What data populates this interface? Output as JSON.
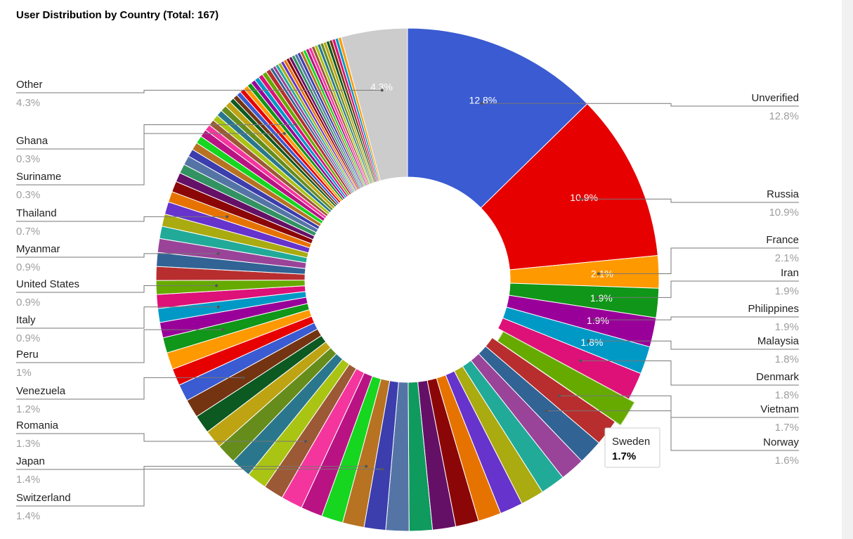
{
  "chart_data": {
    "type": "pie",
    "title": "User Distribution by Country (Total: 167)",
    "hole": true,
    "series": [
      {
        "name": "Unverified",
        "value": 12.8,
        "color": "#3a5bd1",
        "slice_label": "12.8%",
        "legend_label": "12.8%"
      },
      {
        "name": "Russia",
        "value": 10.9,
        "color": "#e60000",
        "slice_label": "10.9%",
        "legend_label": "10.9%"
      },
      {
        "name": "France",
        "value": 2.1,
        "color": "#ff9900",
        "slice_label": "2.1%",
        "legend_label": "2.1%"
      },
      {
        "name": "Iran",
        "value": 1.9,
        "color": "#109618",
        "slice_label": "1.9%",
        "legend_label": "1.9%"
      },
      {
        "name": "Philippines",
        "value": 1.9,
        "color": "#990099",
        "slice_label": "1.9%",
        "legend_label": "1.9%"
      },
      {
        "name": "Malaysia",
        "value": 1.8,
        "color": "#0099c6",
        "slice_label": "1.8%",
        "legend_label": "1.8%"
      },
      {
        "name": "Denmark",
        "value": 1.8,
        "color": "#dd1177",
        "slice_label": "",
        "legend_label": "1.8%"
      },
      {
        "name": "Sweden",
        "value": 1.7,
        "color": "#66aa00",
        "slice_label": "",
        "legend_label": "",
        "exploded": true
      },
      {
        "name": "Vietnam",
        "value": 1.7,
        "color": "#b82e2e",
        "slice_label": "",
        "legend_label": "1.7%"
      },
      {
        "name": "Norway",
        "value": 1.6,
        "color": "#316395",
        "slice_label": "",
        "legend_label": "1.6%"
      },
      {
        "name": "",
        "value": 1.6,
        "color": "#994499",
        "slice_label": "",
        "legend_label": ""
      },
      {
        "name": "",
        "value": 1.6,
        "color": "#22aa99",
        "slice_label": "",
        "legend_label": ""
      },
      {
        "name": "",
        "value": 1.5,
        "color": "#aaaa11",
        "slice_label": "",
        "legend_label": ""
      },
      {
        "name": "",
        "value": 1.5,
        "color": "#6633cc",
        "slice_label": "",
        "legend_label": ""
      },
      {
        "name": "",
        "value": 1.5,
        "color": "#e67300",
        "slice_label": "",
        "legend_label": ""
      },
      {
        "name": "",
        "value": 1.5,
        "color": "#8b0707",
        "slice_label": "",
        "legend_label": ""
      },
      {
        "name": "",
        "value": 1.5,
        "color": "#651067",
        "slice_label": "",
        "legend_label": ""
      },
      {
        "name": "",
        "value": 1.5,
        "color": "#0f9a5e",
        "slice_label": "",
        "legend_label": ""
      },
      {
        "name": "",
        "value": 1.5,
        "color": "#5574a6",
        "slice_label": "",
        "legend_label": ""
      },
      {
        "name": "Switzerland",
        "value": 1.4,
        "color": "#3b3eac",
        "slice_label": "",
        "legend_label": "1.4%"
      },
      {
        "name": "Japan",
        "value": 1.4,
        "color": "#b77322",
        "slice_label": "",
        "legend_label": "1.4%"
      },
      {
        "name": "",
        "value": 1.4,
        "color": "#16d620",
        "slice_label": "",
        "legend_label": ""
      },
      {
        "name": "",
        "value": 1.4,
        "color": "#b91383",
        "slice_label": "",
        "legend_label": ""
      },
      {
        "name": "",
        "value": 1.4,
        "color": "#f4359e",
        "slice_label": "",
        "legend_label": ""
      },
      {
        "name": "Romania",
        "value": 1.3,
        "color": "#9c5935",
        "slice_label": "",
        "legend_label": "1.3%"
      },
      {
        "name": "",
        "value": 1.3,
        "color": "#a9c413",
        "slice_label": "",
        "legend_label": ""
      },
      {
        "name": "",
        "value": 1.3,
        "color": "#2a778d",
        "slice_label": "",
        "legend_label": ""
      },
      {
        "name": "",
        "value": 1.3,
        "color": "#668d1c",
        "slice_label": "",
        "legend_label": ""
      },
      {
        "name": "",
        "value": 1.2,
        "color": "#bea413",
        "slice_label": "",
        "legend_label": ""
      },
      {
        "name": "",
        "value": 1.2,
        "color": "#0c5922",
        "slice_label": "",
        "legend_label": ""
      },
      {
        "name": "Venezuela",
        "value": 1.2,
        "color": "#743411",
        "slice_label": "",
        "legend_label": "1.2%"
      },
      {
        "name": "",
        "value": 1.1,
        "color": "#3a5bd1",
        "slice_label": "",
        "legend_label": ""
      },
      {
        "name": "",
        "value": 1.1,
        "color": "#e60000",
        "slice_label": "",
        "legend_label": ""
      },
      {
        "name": "",
        "value": 1.1,
        "color": "#ff9900",
        "slice_label": "",
        "legend_label": ""
      },
      {
        "name": "Peru",
        "value": 1.0,
        "color": "#109618",
        "slice_label": "",
        "legend_label": "1%"
      },
      {
        "name": "",
        "value": 1.0,
        "color": "#990099",
        "slice_label": "",
        "legend_label": ""
      },
      {
        "name": "Italy",
        "value": 0.9,
        "color": "#0099c6",
        "slice_label": "",
        "legend_label": "0.9%"
      },
      {
        "name": "",
        "value": 0.9,
        "color": "#dd1177",
        "slice_label": "",
        "legend_label": ""
      },
      {
        "name": "United States",
        "value": 0.9,
        "color": "#66aa00",
        "slice_label": "",
        "legend_label": "0.9%"
      },
      {
        "name": "",
        "value": 0.9,
        "color": "#b82e2e",
        "slice_label": "",
        "legend_label": ""
      },
      {
        "name": "",
        "value": 0.9,
        "color": "#316395",
        "slice_label": "",
        "legend_label": ""
      },
      {
        "name": "Myanmar",
        "value": 0.9,
        "color": "#994499",
        "slice_label": "",
        "legend_label": "0.9%"
      },
      {
        "name": "",
        "value": 0.8,
        "color": "#22aa99",
        "slice_label": "",
        "legend_label": ""
      },
      {
        "name": "",
        "value": 0.8,
        "color": "#aaaa11",
        "slice_label": "",
        "legend_label": ""
      },
      {
        "name": "",
        "value": 0.8,
        "color": "#6633cc",
        "slice_label": "",
        "legend_label": ""
      },
      {
        "name": "Thailand",
        "value": 0.7,
        "color": "#e67300",
        "slice_label": "",
        "legend_label": "0.7%"
      },
      {
        "name": "",
        "value": 0.7,
        "color": "#8b0707",
        "slice_label": "",
        "legend_label": ""
      },
      {
        "name": "",
        "value": 0.6,
        "color": "#651067",
        "slice_label": "",
        "legend_label": ""
      },
      {
        "name": "",
        "value": 0.6,
        "color": "#329262",
        "slice_label": "",
        "legend_label": ""
      },
      {
        "name": "",
        "value": 0.6,
        "color": "#5574a6",
        "slice_label": "",
        "legend_label": ""
      },
      {
        "name": "",
        "value": 0.5,
        "color": "#3b3eac",
        "slice_label": "",
        "legend_label": ""
      },
      {
        "name": "",
        "value": 0.5,
        "color": "#b77322",
        "slice_label": "",
        "legend_label": ""
      },
      {
        "name": "",
        "value": 0.5,
        "color": "#16d620",
        "slice_label": "",
        "legend_label": ""
      },
      {
        "name": "",
        "value": 0.5,
        "color": "#b91383",
        "slice_label": "",
        "legend_label": ""
      },
      {
        "name": "",
        "value": 0.4,
        "color": "#f4359e",
        "slice_label": "",
        "legend_label": ""
      },
      {
        "name": "",
        "value": 0.4,
        "color": "#9c5935",
        "slice_label": "",
        "legend_label": ""
      },
      {
        "name": "",
        "value": 0.4,
        "color": "#a9c413",
        "slice_label": "",
        "legend_label": ""
      },
      {
        "name": "",
        "value": 0.4,
        "color": "#2a778d",
        "slice_label": "",
        "legend_label": ""
      },
      {
        "name": "",
        "value": 0.4,
        "color": "#668d1c",
        "slice_label": "",
        "legend_label": ""
      },
      {
        "name": "",
        "value": 0.4,
        "color": "#bea413",
        "slice_label": "",
        "legend_label": ""
      },
      {
        "name": "",
        "value": 0.3,
        "color": "#0c5922",
        "slice_label": "",
        "legend_label": ""
      },
      {
        "name": "",
        "value": 0.3,
        "color": "#743411",
        "slice_label": "",
        "legend_label": ""
      },
      {
        "name": "",
        "value": 0.3,
        "color": "#3a5bd1",
        "slice_label": "",
        "legend_label": ""
      },
      {
        "name": "",
        "value": 0.3,
        "color": "#e60000",
        "slice_label": "",
        "legend_label": ""
      },
      {
        "name": "Suriname",
        "value": 0.3,
        "color": "#ff9900",
        "slice_label": "",
        "legend_label": "0.3%"
      },
      {
        "name": "",
        "value": 0.3,
        "color": "#109618",
        "slice_label": "",
        "legend_label": ""
      },
      {
        "name": "",
        "value": 0.3,
        "color": "#990099",
        "slice_label": "",
        "legend_label": ""
      },
      {
        "name": "",
        "value": 0.3,
        "color": "#0099c6",
        "slice_label": "",
        "legend_label": ""
      },
      {
        "name": "Ghana",
        "value": 0.3,
        "color": "#dd1177",
        "slice_label": "",
        "legend_label": "0.3%"
      },
      {
        "name": "",
        "value": 0.3,
        "color": "#66aa00",
        "slice_label": "",
        "legend_label": ""
      },
      {
        "name": "",
        "value": 0.3,
        "color": "#b82e2e",
        "slice_label": "",
        "legend_label": ""
      },
      {
        "name": "",
        "value": 0.2,
        "color": "#316395",
        "slice_label": "",
        "legend_label": ""
      },
      {
        "name": "",
        "value": 0.2,
        "color": "#994499",
        "slice_label": "",
        "legend_label": ""
      },
      {
        "name": "",
        "value": 0.2,
        "color": "#22aa99",
        "slice_label": "",
        "legend_label": ""
      },
      {
        "name": "",
        "value": 0.2,
        "color": "#aaaa11",
        "slice_label": "",
        "legend_label": ""
      },
      {
        "name": "",
        "value": 0.2,
        "color": "#6633cc",
        "slice_label": "",
        "legend_label": ""
      },
      {
        "name": "",
        "value": 0.2,
        "color": "#e67300",
        "slice_label": "",
        "legend_label": ""
      },
      {
        "name": "",
        "value": 0.2,
        "color": "#8b0707",
        "slice_label": "",
        "legend_label": ""
      },
      {
        "name": "",
        "value": 0.2,
        "color": "#651067",
        "slice_label": "",
        "legend_label": ""
      },
      {
        "name": "",
        "value": 0.2,
        "color": "#329262",
        "slice_label": "",
        "legend_label": ""
      },
      {
        "name": "",
        "value": 0.2,
        "color": "#5574a6",
        "slice_label": "",
        "legend_label": ""
      },
      {
        "name": "",
        "value": 0.2,
        "color": "#3b3eac",
        "slice_label": "",
        "legend_label": ""
      },
      {
        "name": "",
        "value": 0.2,
        "color": "#b77322",
        "slice_label": "",
        "legend_label": ""
      },
      {
        "name": "",
        "value": 0.2,
        "color": "#16d620",
        "slice_label": "",
        "legend_label": ""
      },
      {
        "name": "",
        "value": 0.2,
        "color": "#b91383",
        "slice_label": "",
        "legend_label": ""
      },
      {
        "name": "",
        "value": 0.2,
        "color": "#f4359e",
        "slice_label": "",
        "legend_label": ""
      },
      {
        "name": "",
        "value": 0.2,
        "color": "#9c5935",
        "slice_label": "",
        "legend_label": ""
      },
      {
        "name": "",
        "value": 0.2,
        "color": "#a9c413",
        "slice_label": "",
        "legend_label": ""
      },
      {
        "name": "",
        "value": 0.2,
        "color": "#2a778d",
        "slice_label": "",
        "legend_label": ""
      },
      {
        "name": "",
        "value": 0.2,
        "color": "#668d1c",
        "slice_label": "",
        "legend_label": ""
      },
      {
        "name": "",
        "value": 0.2,
        "color": "#bea413",
        "slice_label": "",
        "legend_label": ""
      },
      {
        "name": "",
        "value": 0.2,
        "color": "#0c5922",
        "slice_label": "",
        "legend_label": ""
      },
      {
        "name": "",
        "value": 0.2,
        "color": "#743411",
        "slice_label": "",
        "legend_label": ""
      },
      {
        "name": "",
        "value": 0.2,
        "color": "#dd1177",
        "slice_label": "",
        "legend_label": ""
      },
      {
        "name": "",
        "value": 0.2,
        "color": "#0099c6",
        "slice_label": "",
        "legend_label": ""
      },
      {
        "name": "",
        "value": 0.2,
        "color": "#ff9900",
        "slice_label": "",
        "legend_label": ""
      },
      {
        "name": "Other",
        "value": 4.3,
        "color": "#cccccc",
        "slice_label": "4.3%",
        "legend_label": "4.3%"
      }
    ],
    "tooltip": {
      "name": "Sweden",
      "value": "1.7%"
    }
  }
}
